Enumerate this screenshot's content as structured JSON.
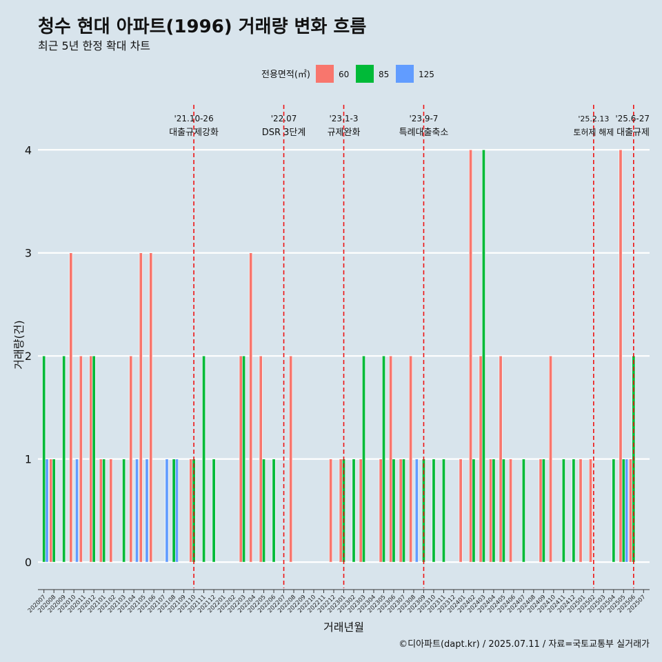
{
  "chart_data": {
    "type": "bar",
    "title": "청수 현대 아파트(1996) 거래량 변화 흐름",
    "subtitle": "최근 5년 한정 확대 차트",
    "xlabel": "거래년월",
    "ylabel": "거래량(건)",
    "ylim": [
      -0.2,
      4.45
    ],
    "yticks": [
      0,
      1,
      2,
      3,
      4
    ],
    "grid": true,
    "legend": {
      "title": "전용면적(㎡)",
      "placement": "top",
      "entries": [
        {
          "key": "60",
          "label": "60",
          "color": "#f8766d"
        },
        {
          "key": "85",
          "label": "85",
          "color": "#00ba38"
        },
        {
          "key": "125",
          "label": "125",
          "color": "#619cff"
        }
      ]
    },
    "categories": [
      "202007",
      "202008",
      "202009",
      "202010",
      "202011",
      "202012",
      "202101",
      "202102",
      "202103",
      "202104",
      "202105",
      "202106",
      "202107",
      "202108",
      "202109",
      "202110",
      "202111",
      "202112",
      "202201",
      "202202",
      "202203",
      "202204",
      "202205",
      "202206",
      "202207",
      "202208",
      "202209",
      "202210",
      "202211",
      "202212",
      "202301",
      "202302",
      "202303",
      "202304",
      "202305",
      "202306",
      "202307",
      "202308",
      "202309",
      "202310",
      "202311",
      "202312",
      "202401",
      "202402",
      "202403",
      "202404",
      "202405",
      "202406",
      "202407",
      "202408",
      "202409",
      "202410",
      "202411",
      "202412",
      "202501",
      "202502",
      "202503",
      "202504",
      "202505",
      "202506",
      "202507"
    ],
    "series": [
      {
        "name": "60",
        "values": [
          0,
          1,
          0,
          3,
          2,
          2,
          1,
          1,
          0,
          2,
          3,
          3,
          0,
          0,
          0,
          1,
          0,
          0,
          0,
          0,
          2,
          3,
          2,
          0,
          0,
          2,
          0,
          0,
          0,
          1,
          1,
          0,
          1,
          0,
          1,
          2,
          1,
          2,
          0,
          0,
          0,
          0,
          1,
          4,
          2,
          1,
          2,
          1,
          0,
          0,
          1,
          2,
          0,
          0,
          1,
          1,
          0,
          0,
          4,
          1,
          0
        ]
      },
      {
        "name": "85",
        "values": [
          2,
          1,
          2,
          0,
          0,
          2,
          1,
          0,
          1,
          0,
          0,
          0,
          0,
          1,
          0,
          1,
          2,
          1,
          0,
          0,
          2,
          0,
          1,
          1,
          0,
          0,
          0,
          0,
          0,
          0,
          1,
          1,
          2,
          0,
          2,
          1,
          1,
          0,
          1,
          1,
          1,
          0,
          0,
          1,
          4,
          1,
          1,
          0,
          1,
          0,
          1,
          0,
          1,
          1,
          0,
          0,
          0,
          1,
          1,
          2,
          0
        ]
      },
      {
        "name": "125",
        "values": [
          1,
          0,
          0,
          1,
          0,
          0,
          0,
          0,
          0,
          1,
          1,
          0,
          1,
          1,
          0,
          0,
          0,
          0,
          0,
          0,
          0,
          0,
          0,
          0,
          0,
          0,
          0,
          0,
          0,
          0,
          0,
          0,
          0,
          0,
          0,
          0,
          0,
          1,
          0,
          0,
          0,
          0,
          0,
          0,
          0,
          0,
          0,
          0,
          0,
          0,
          0,
          0,
          0,
          0,
          0,
          0,
          0,
          0,
          1,
          0,
          0
        ]
      }
    ],
    "annotations": [
      {
        "at": "202110",
        "date": "'21.10-26",
        "label": "대출규제강화"
      },
      {
        "at": "202207",
        "date": "'22.07",
        "label": "DSR 3단계"
      },
      {
        "at": "202301",
        "date": "'23.1-3",
        "label": "규제완화"
      },
      {
        "at": "202309",
        "date": "'23.9-7",
        "label": "특례대출축소"
      },
      {
        "at": "202502",
        "date": "'25.2.13",
        "label": "토허제 해제"
      },
      {
        "at": "202506",
        "date": "'25.6-27",
        "label": "대출규제"
      }
    ]
  },
  "caption": "©디아파트(dapt.kr) / 2025.07.11 / 자료=국토교통부 실거래가"
}
